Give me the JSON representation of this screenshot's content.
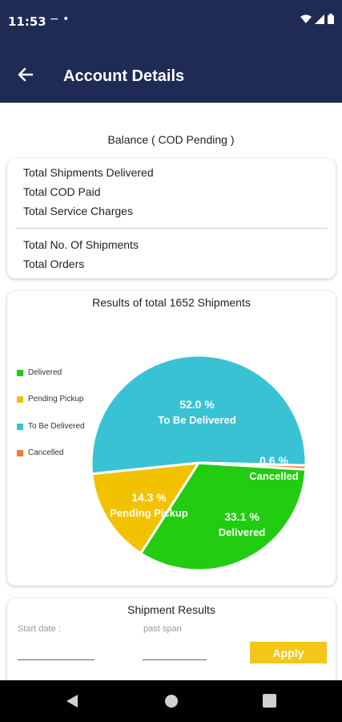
{
  "status": {
    "time": "11:53",
    "left_icons": "−  •"
  },
  "app_bar": {
    "title": "Account Details"
  },
  "balance": {
    "title": "Balance ( COD Pending )",
    "group1": [
      "Total Shipments Delivered",
      "Total COD Paid",
      "Total Service Charges"
    ],
    "group2": [
      "Total No. Of Shipments",
      "Total Orders"
    ]
  },
  "chart_card": {
    "title": "Results of total 1652 Shipments"
  },
  "chart_data": {
    "type": "pie",
    "title": "Results of total 1652 Shipments",
    "legend_position": "left",
    "slices": [
      {
        "name": "Delivered",
        "value": 33.1,
        "label_pct": "33.1 %",
        "label_name": "Delivered",
        "color": "#22cc11"
      },
      {
        "name": "Pending Pickup",
        "value": 14.3,
        "label_pct": "14.3 %",
        "label_name": "Pending Pickup",
        "color": "#f2c200"
      },
      {
        "name": "To Be Delivered",
        "value": 52.0,
        "label_pct": "52.0 %",
        "label_name": "To Be Delivered",
        "color": "#39c2d3"
      },
      {
        "name": "Cancelled",
        "value": 0.6,
        "label_pct": "0.6 %",
        "label_name": "Cancelled",
        "color": "#f57c2a"
      }
    ]
  },
  "shipment_results": {
    "title": "Shipment Results",
    "start_date_label": "Start date :",
    "past_span_label": "past span",
    "apply_label": "Apply"
  },
  "colors": {
    "primary": "#1f2a55",
    "accent": "#f5c518"
  },
  "icons": {
    "back": "arrow-left-icon",
    "wifi": "wifi-icon",
    "signal": "signal-icon",
    "battery": "battery-icon"
  }
}
